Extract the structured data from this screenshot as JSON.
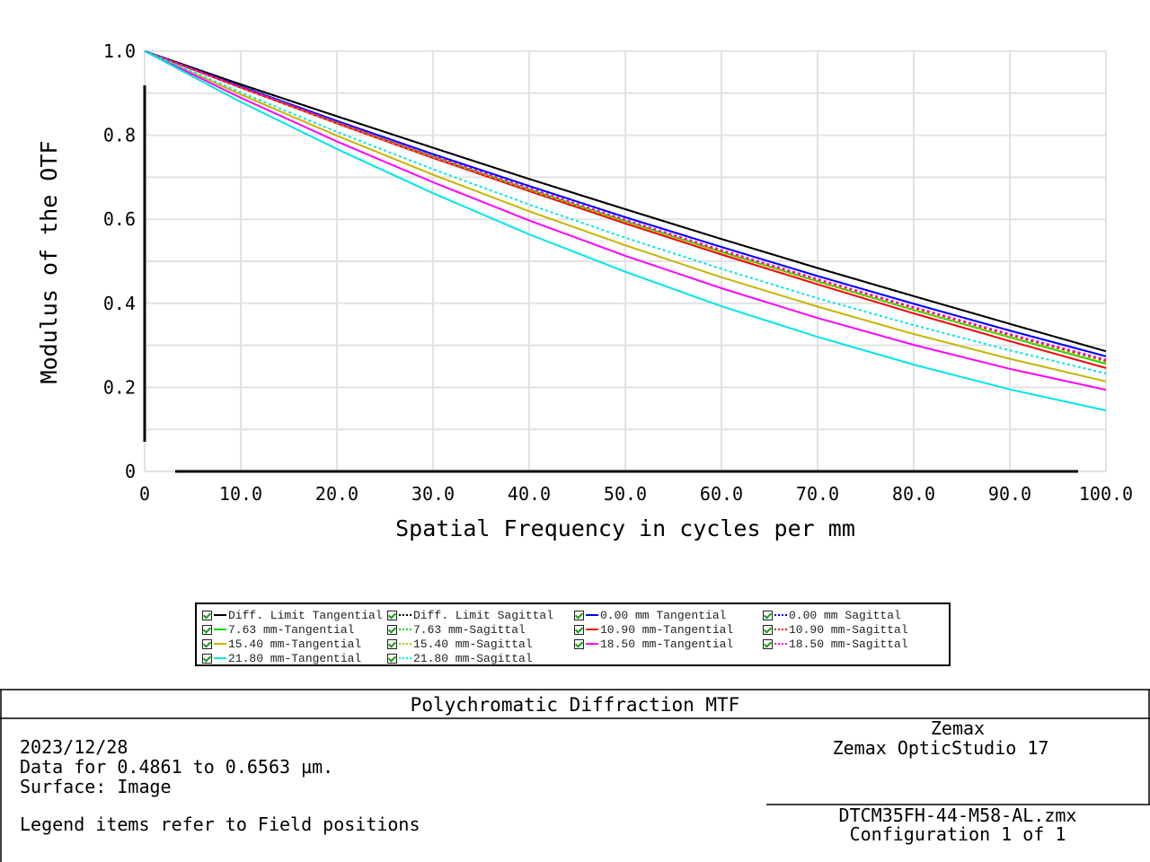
{
  "chart_data": {
    "type": "line",
    "title": "Polychromatic Diffraction MTF",
    "xlabel": "Spatial Frequency in cycles per mm",
    "ylabel": "Modulus of the OTF",
    "xlim": [
      0,
      100
    ],
    "ylim": [
      0,
      1.0
    ],
    "grid": true,
    "legend_position": "bottom",
    "x_ticks": [
      "0",
      "10.0",
      "20.0",
      "30.0",
      "40.0",
      "50.0",
      "60.0",
      "70.0",
      "80.0",
      "90.0",
      "100.0"
    ],
    "y_ticks": [
      "0",
      "0.2",
      "0.4",
      "0.6",
      "0.8",
      "1.0"
    ],
    "x": [
      0,
      10,
      20,
      30,
      40,
      50,
      60,
      70,
      80,
      90,
      100
    ],
    "series": [
      {
        "name": "Diff. Limit Tangential",
        "color": "#000000",
        "style": "solid",
        "values": [
          1,
          0.921,
          0.845,
          0.77,
          0.696,
          0.624,
          0.553,
          0.484,
          0.417,
          0.351,
          0.286
        ]
      },
      {
        "name": "Diff. Limit Sagittal",
        "color": "#000000",
        "style": "dotted",
        "values": [
          1,
          0.921,
          0.845,
          0.77,
          0.696,
          0.624,
          0.553,
          0.484,
          0.417,
          0.351,
          0.286
        ]
      },
      {
        "name": "0.00 mm Tangential",
        "color": "#0000ff",
        "style": "solid",
        "values": [
          1,
          0.916,
          0.834,
          0.755,
          0.679,
          0.605,
          0.534,
          0.465,
          0.399,
          0.335,
          0.274
        ]
      },
      {
        "name": "0.00 mm Sagittal",
        "color": "#0000ff",
        "style": "dotted",
        "values": [
          1,
          0.916,
          0.834,
          0.755,
          0.679,
          0.605,
          0.534,
          0.465,
          0.399,
          0.335,
          0.274
        ]
      },
      {
        "name": "7.63 mm-Tangential",
        "color": "#00dd00",
        "style": "solid",
        "values": [
          1,
          0.914,
          0.83,
          0.749,
          0.671,
          0.595,
          0.522,
          0.452,
          0.384,
          0.319,
          0.256
        ]
      },
      {
        "name": "7.63 mm-Sagittal",
        "color": "#00dd00",
        "style": "dotted",
        "values": [
          1,
          0.914,
          0.831,
          0.751,
          0.673,
          0.598,
          0.526,
          0.456,
          0.389,
          0.324,
          0.262
        ]
      },
      {
        "name": "10.90 mm-Tangential",
        "color": "#ff0000",
        "style": "solid",
        "values": [
          1,
          0.913,
          0.828,
          0.746,
          0.667,
          0.59,
          0.516,
          0.445,
          0.376,
          0.31,
          0.246
        ]
      },
      {
        "name": "10.90 mm-Sagittal",
        "color": "#ff0000",
        "style": "dotted",
        "values": [
          1,
          0.914,
          0.83,
          0.75,
          0.672,
          0.597,
          0.525,
          0.455,
          0.389,
          0.325,
          0.264
        ]
      },
      {
        "name": "15.40 mm-Tangential",
        "color": "#c8b400",
        "style": "solid",
        "values": [
          1,
          0.897,
          0.799,
          0.706,
          0.619,
          0.538,
          0.462,
          0.392,
          0.327,
          0.268,
          0.214
        ]
      },
      {
        "name": "15.40 mm-Sagittal",
        "color": "#c8b400",
        "style": "dotted",
        "values": [
          1,
          0.913,
          0.829,
          0.748,
          0.67,
          0.594,
          0.521,
          0.452,
          0.385,
          0.32,
          0.259
        ]
      },
      {
        "name": "18.50 mm-Tangential",
        "color": "#ff00ff",
        "style": "solid",
        "values": [
          1,
          0.889,
          0.785,
          0.688,
          0.597,
          0.513,
          0.436,
          0.365,
          0.301,
          0.244,
          0.194
        ]
      },
      {
        "name": "18.50 mm-Sagittal",
        "color": "#ff00ff",
        "style": "dotted",
        "values": [
          1,
          0.914,
          0.831,
          0.751,
          0.674,
          0.599,
          0.527,
          0.458,
          0.391,
          0.327,
          0.266
        ]
      },
      {
        "name": "21.80 mm-Tangential",
        "color": "#00e5e5",
        "style": "solid",
        "values": [
          1,
          0.879,
          0.767,
          0.662,
          0.564,
          0.475,
          0.393,
          0.32,
          0.254,
          0.195,
          0.145
        ]
      },
      {
        "name": "21.80 mm-Sagittal",
        "color": "#00e5e5",
        "style": "dotted",
        "values": [
          1,
          0.902,
          0.808,
          0.719,
          0.635,
          0.556,
          0.482,
          0.412,
          0.348,
          0.288,
          0.233
        ]
      }
    ]
  },
  "footer": {
    "title": "Polychromatic Diffraction MTF",
    "date": "2023/12/28",
    "data_range": "Data for 0.4861 to 0.6563 µm.",
    "surface": "Surface: Image",
    "legend_note": "Legend items refer to Field positions",
    "vendor": "Zemax",
    "product": "Zemax OpticStudio 17",
    "file": "DTCM35FH-44-M58-AL.zmx",
    "configuration": "Configuration 1 of 1"
  }
}
